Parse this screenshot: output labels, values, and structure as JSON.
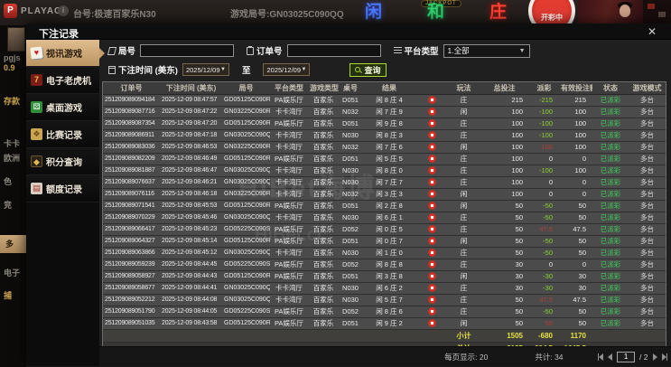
{
  "top_bar": {
    "brand": "PLAYACE",
    "info_icon": "i",
    "table_label": "台号:极速百家乐N30",
    "round_label": "游戏局号:GN03025C090QQ",
    "jackpot_label": "JACKPOT",
    "neon_player": "闲",
    "neon_tie": "和",
    "neon_banker": "庄",
    "wheel_label": "开彩中"
  },
  "bg_sidebar": {
    "items": [
      "pgjs",
      "0.9",
      "存款",
      "卡卡",
      "欧洲",
      "色",
      "竞",
      "电子",
      "捕"
    ],
    "highlight_item": "多"
  },
  "modal": {
    "title": "下注记录",
    "close_label": "✕"
  },
  "menu": {
    "items": [
      {
        "label": "视讯游戏",
        "icon": "cards-icon",
        "glyph": "♥",
        "active": true
      },
      {
        "label": "电子老虎机",
        "icon": "slot-icon",
        "glyph": "7",
        "active": false
      },
      {
        "label": "桌面游戏",
        "icon": "dice-icon",
        "glyph": "⚄",
        "active": false
      },
      {
        "label": "比赛记录",
        "icon": "ticket-icon",
        "glyph": "❖",
        "active": false
      },
      {
        "label": "积分查询",
        "icon": "gem-icon",
        "glyph": "◆",
        "active": false
      },
      {
        "label": "额度记录",
        "icon": "doc-icon",
        "glyph": "▤",
        "active": false
      }
    ]
  },
  "filters": {
    "round_label": "局号",
    "round_value": "",
    "order_label": "订单号",
    "order_value": "",
    "platform_label": "平台类型",
    "platform_value": "1.全部",
    "time_label": "下注时间 (美东)",
    "date_from": "2025/12/09",
    "to_label": "至",
    "date_to": "2025/12/09",
    "search_label": "查询"
  },
  "table": {
    "headers": [
      "订单号",
      "下注时间 (美东)",
      "局号",
      "平台类型",
      "游戏类型",
      "桌号",
      "结果",
      "",
      "玩法",
      "总投注",
      "派彩",
      "有效投注额",
      "状态",
      "游戏模式"
    ],
    "rows": [
      {
        "order": "251209089094184",
        "time": "2025-12-09 08:47:57",
        "round": "GD05125C090RV",
        "platform": "PA娱乐厅",
        "game": "百家乐",
        "table_no": "D051",
        "result": "闲 8 庄 4",
        "play": "庄",
        "total": "215",
        "payout": "-215",
        "valid": "215",
        "status": "已派彩",
        "mode": "多台"
      },
      {
        "order": "251209089087716",
        "time": "2025-12-09 08:47:22",
        "round": "GN03225C090R9",
        "platform": "卡卡湾厅",
        "game": "百家乐",
        "table_no": "N032",
        "result": "闲 7 庄 9",
        "play": "闲",
        "total": "100",
        "payout": "-100",
        "valid": "100",
        "status": "已派彩",
        "mode": "多台"
      },
      {
        "order": "251209089087354",
        "time": "2025-12-09 08:47:20",
        "round": "GD05125C090RU",
        "platform": "PA娱乐厅",
        "game": "百家乐",
        "table_no": "D051",
        "result": "闲 9 庄 8",
        "play": "庄",
        "total": "100",
        "payout": "-100",
        "valid": "100",
        "status": "已派彩",
        "mode": "多台"
      },
      {
        "order": "251209089086911",
        "time": "2025-12-09 08:47:18",
        "round": "GN03025C090QO",
        "platform": "卡卡湾厅",
        "game": "百家乐",
        "table_no": "N030",
        "result": "闲 8 庄 3",
        "play": "庄",
        "total": "100",
        "payout": "-100",
        "valid": "100",
        "status": "已派彩",
        "mode": "多台"
      },
      {
        "order": "251209089083036",
        "time": "2025-12-09 08:46:53",
        "round": "GN03225C090R8",
        "platform": "卡卡湾厅",
        "game": "百家乐",
        "table_no": "N032",
        "result": "闲 7 庄 6",
        "play": "闲",
        "total": "100",
        "payout": "100",
        "valid": "100",
        "status": "已派彩",
        "mode": "多台"
      },
      {
        "order": "251209089082209",
        "time": "2025-12-09 08:46:49",
        "round": "GD05125C090RT",
        "platform": "PA娱乐厅",
        "game": "百家乐",
        "table_no": "D051",
        "result": "闲 5 庄 5",
        "play": "庄",
        "total": "100",
        "payout": "0",
        "valid": "0",
        "status": "已派彩",
        "mode": "多台"
      },
      {
        "order": "251209089081887",
        "time": "2025-12-09 08:46:47",
        "round": "GN03025C090QN",
        "platform": "卡卡湾厅",
        "game": "百家乐",
        "table_no": "N030",
        "result": "闲 8 庄 0",
        "play": "庄",
        "total": "100",
        "payout": "-100",
        "valid": "100",
        "status": "已派彩",
        "mode": "多台"
      },
      {
        "order": "251209089076637",
        "time": "2025-12-09 08:46:21",
        "round": "GN03025C090QM",
        "platform": "卡卡湾厅",
        "game": "百家乐",
        "table_no": "N030",
        "result": "闲 7 庄 7",
        "play": "庄",
        "total": "100",
        "payout": "0",
        "valid": "0",
        "status": "已派彩",
        "mode": "多台"
      },
      {
        "order": "251209089076116",
        "time": "2025-12-09 08:46:18",
        "round": "GN03225C090R7",
        "platform": "卡卡湾厅",
        "game": "百家乐",
        "table_no": "N032",
        "result": "闲 3 庄 3",
        "play": "闲",
        "total": "100",
        "payout": "0",
        "valid": "0",
        "status": "已派彩",
        "mode": "多台"
      },
      {
        "order": "251209089071541",
        "time": "2025-12-09 08:45:53",
        "round": "GD05125C090RS",
        "platform": "PA娱乐厅",
        "game": "百家乐",
        "table_no": "D051",
        "result": "闲 2 庄 8",
        "play": "闲",
        "total": "50",
        "payout": "-50",
        "valid": "50",
        "status": "已派彩",
        "mode": "多台"
      },
      {
        "order": "251209089070229",
        "time": "2025-12-09 08:45:46",
        "round": "GN03025C090QL",
        "platform": "卡卡湾厅",
        "game": "百家乐",
        "table_no": "N030",
        "result": "闲 6 庄 1",
        "play": "庄",
        "total": "50",
        "payout": "-50",
        "valid": "50",
        "status": "已派彩",
        "mode": "多台"
      },
      {
        "order": "251209089066417",
        "time": "2025-12-09 08:45:23",
        "round": "GD05225C090S5",
        "platform": "PA娱乐厅",
        "game": "百家乐",
        "table_no": "D052",
        "result": "闲 0 庄 5",
        "play": "庄",
        "total": "50",
        "payout": "47.5",
        "valid": "47.5",
        "status": "已派彩",
        "mode": "多台"
      },
      {
        "order": "251209089064327",
        "time": "2025-12-09 08:45:14",
        "round": "GD05125C090RR",
        "platform": "PA娱乐厅",
        "game": "百家乐",
        "table_no": "D051",
        "result": "闲 0 庄 7",
        "play": "闲",
        "total": "50",
        "payout": "-50",
        "valid": "50",
        "status": "已派彩",
        "mode": "多台"
      },
      {
        "order": "251209089063866",
        "time": "2025-12-09 08:45:12",
        "round": "GN03025C090QK",
        "platform": "卡卡湾厅",
        "game": "百家乐",
        "table_no": "N030",
        "result": "闲 1 庄 0",
        "play": "庄",
        "total": "50",
        "payout": "-50",
        "valid": "50",
        "status": "已派彩",
        "mode": "多台"
      },
      {
        "order": "251209089059239",
        "time": "2025-12-09 08:44:45",
        "round": "GD05225C090S4",
        "platform": "PA娱乐厅",
        "game": "百家乐",
        "table_no": "D052",
        "result": "闲 8 庄 8",
        "play": "庄",
        "total": "30",
        "payout": "0",
        "valid": "0",
        "status": "已派彩",
        "mode": "多台"
      },
      {
        "order": "251209089058927",
        "time": "2025-12-09 08:44:43",
        "round": "GD05125C090RQ",
        "platform": "PA娱乐厅",
        "game": "百家乐",
        "table_no": "D051",
        "result": "闲 3 庄 8",
        "play": "闲",
        "total": "30",
        "payout": "-30",
        "valid": "30",
        "status": "已派彩",
        "mode": "多台"
      },
      {
        "order": "251209089058677",
        "time": "2025-12-09 08:44:41",
        "round": "GN03025C090QJ",
        "platform": "卡卡湾厅",
        "game": "百家乐",
        "table_no": "N030",
        "result": "闲 6 庄 2",
        "play": "庄",
        "total": "30",
        "payout": "-30",
        "valid": "30",
        "status": "已派彩",
        "mode": "多台"
      },
      {
        "order": "251209089052212",
        "time": "2025-12-09 08:44:08",
        "round": "GN03025C090QI",
        "platform": "卡卡湾厅",
        "game": "百家乐",
        "table_no": "N030",
        "result": "闲 5 庄 7",
        "play": "庄",
        "total": "50",
        "payout": "47.5",
        "valid": "47.5",
        "status": "已派彩",
        "mode": "多台"
      },
      {
        "order": "251209089051790",
        "time": "2025-12-09 08:44:05",
        "round": "GD05225C090S3",
        "platform": "PA娱乐厅",
        "game": "百家乐",
        "table_no": "D052",
        "result": "闲 8 庄 6",
        "play": "庄",
        "total": "50",
        "payout": "-50",
        "valid": "50",
        "status": "已派彩",
        "mode": "多台"
      },
      {
        "order": "251209089051035",
        "time": "2025-12-09 08:43:58",
        "round": "GD05125C090RP",
        "platform": "PA娱乐厅",
        "game": "百家乐",
        "table_no": "D051",
        "result": "闲 9 庄 2",
        "play": "闲",
        "total": "50",
        "payout": "50",
        "valid": "50",
        "status": "已派彩",
        "mode": "多台"
      }
    ],
    "subtotal": {
      "label": "小计",
      "total": "1505",
      "payout": "-680",
      "valid": "1170"
    },
    "grand_total": {
      "label": "总计",
      "total": "2125",
      "payout": "-604.5",
      "valid": "1645.5"
    }
  },
  "footer": {
    "per_page_label": "每页显示: 20",
    "total_count_label": "共计: 34",
    "page_value": "1",
    "page_total_label": "/ 2"
  },
  "watermark": {
    "line1": "HiBet海博",
    "line2": "HiBet.cc"
  },
  "colors": {
    "win_red": "#b04038",
    "loss_green": "#8fd133",
    "status_green": "#3fd05c",
    "subtotal_yellow": "#e6e33f",
    "active_tab_tan": "#cfa87a"
  }
}
